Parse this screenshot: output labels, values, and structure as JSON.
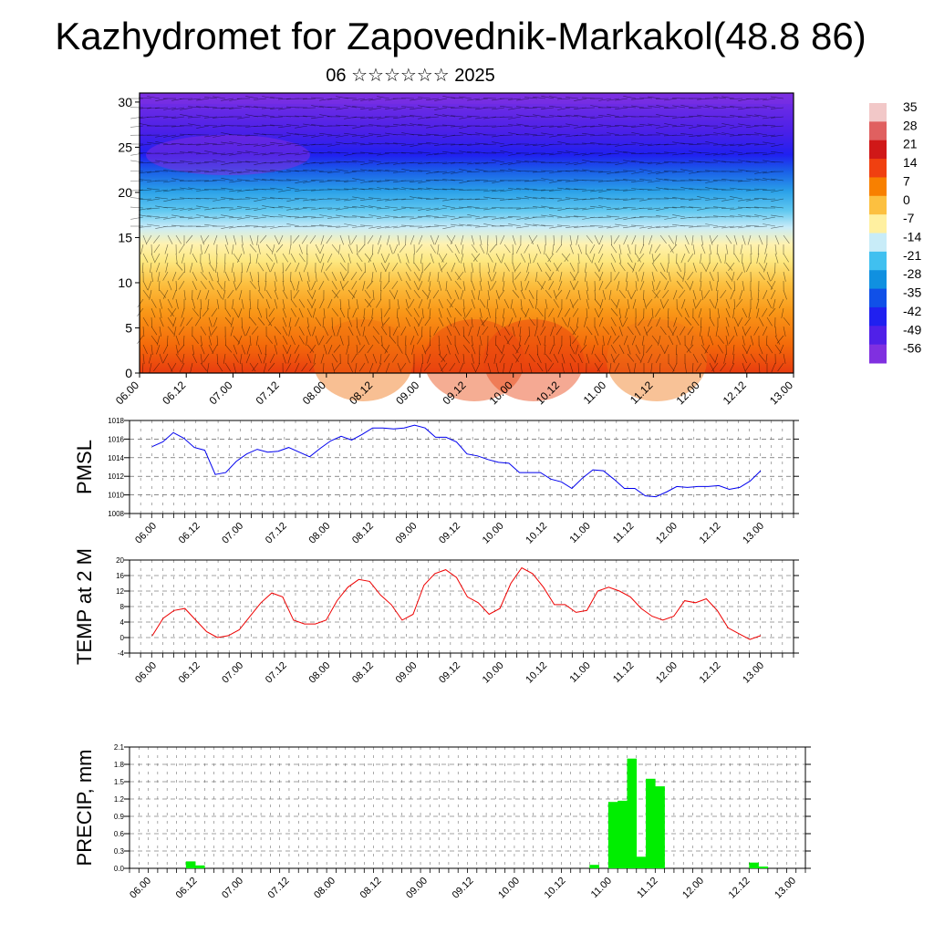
{
  "title": "Kazhydromet for Zapovednik-Markakol(48.8 86)",
  "subtitle": "06 ☆☆☆☆☆☆ 2025",
  "colorbar": {
    "labels": [
      "35",
      "28",
      "21",
      "14",
      "7",
      "0",
      "-7",
      "-14",
      "-21",
      "-28",
      "-35",
      "-42",
      "-49",
      "-56"
    ],
    "colors": [
      "#f2c8c8",
      "#e06060",
      "#d01818",
      "#f04010",
      "#f88000",
      "#fcc040",
      "#fff0a0",
      "#c8ecf8",
      "#40c0f0",
      "#1090e0",
      "#1050e8",
      "#2020f0",
      "#5020e8",
      "#8030e0"
    ]
  },
  "chart_data": [
    {
      "type": "heatmap",
      "x_tick_labels": [
        "06.00",
        "06.12",
        "07.00",
        "07.12",
        "08.00",
        "08.12",
        "09.00",
        "09.12",
        "10.00",
        "10.12",
        "11.00",
        "11.12",
        "12.00",
        "12.12",
        "13.00"
      ],
      "y_ticks": [
        0,
        5,
        10,
        15,
        20,
        25,
        30
      ],
      "ylim": [
        0,
        31
      ],
      "description_layers": "temperature (color) vs level with wind barbs",
      "zero_line_level": [
        14,
        14.5,
        15,
        15.5,
        16,
        16,
        16,
        15.5,
        15,
        14.5,
        14,
        13.5,
        13,
        12.5,
        12
      ]
    },
    {
      "type": "line",
      "ylabel": "PMSL",
      "color": "#0000ee",
      "x_tick_labels": [
        "06.00",
        "06.12",
        "07.00",
        "07.12",
        "08.00",
        "08.12",
        "09.00",
        "09.12",
        "10.00",
        "10.12",
        "11.00",
        "11.12",
        "12.00",
        "12.12",
        "13.00"
      ],
      "y_ticks": [
        1008,
        1010,
        1012,
        1014,
        1016,
        1018
      ],
      "ylim": [
        1008,
        1018
      ],
      "values": [
        1015.2,
        1015.7,
        1016.7,
        1016.1,
        1015.1,
        1014.8,
        1012.2,
        1012.4,
        1013.6,
        1014.4,
        1014.9,
        1014.6,
        1014.7,
        1015.1,
        1014.6,
        1014.1,
        1015.0,
        1015.8,
        1016.3,
        1015.9,
        1016.5,
        1017.2,
        1017.2,
        1017.1,
        1017.2,
        1017.5,
        1017.2,
        1016.2,
        1016.2,
        1015.7,
        1014.4,
        1014.2,
        1013.8,
        1013.5,
        1013.4,
        1012.4,
        1012.4,
        1012.4,
        1011.7,
        1011.4,
        1010.7,
        1011.8,
        1012.7,
        1012.6,
        1011.7,
        1010.7,
        1010.7,
        1009.9,
        1009.8,
        1010.3,
        1010.9,
        1010.8,
        1010.9,
        1010.9,
        1011.0,
        1010.6,
        1010.8,
        1011.5,
        1012.6
      ]
    },
    {
      "type": "line",
      "ylabel": "TEMP at 2 M",
      "color": "#ee0000",
      "x_tick_labels": [
        "06.00",
        "06.12",
        "07.00",
        "07.12",
        "08.00",
        "08.12",
        "09.00",
        "09.12",
        "10.00",
        "10.12",
        "11.00",
        "11.12",
        "12.00",
        "12.12",
        "13.00"
      ],
      "y_ticks": [
        -4,
        0,
        4,
        8,
        12,
        16,
        20
      ],
      "ylim": [
        -4,
        20
      ],
      "values": [
        0.5,
        5.0,
        7.0,
        7.5,
        4.5,
        1.5,
        0.0,
        0.5,
        2.0,
        5.5,
        9.0,
        11.5,
        10.5,
        4.5,
        3.5,
        3.5,
        4.5,
        9.5,
        13.0,
        15.0,
        14.5,
        11.0,
        8.5,
        4.5,
        6.0,
        13.5,
        16.5,
        17.5,
        15.5,
        10.5,
        9.0,
        6.0,
        7.5,
        14.0,
        18.0,
        16.5,
        13.0,
        8.5,
        8.5,
        6.5,
        7.0,
        12.0,
        13.0,
        12.0,
        10.5,
        7.5,
        5.5,
        4.5,
        5.5,
        9.5,
        9.0,
        10.0,
        7.0,
        2.5,
        1.0,
        -0.5,
        0.5
      ]
    },
    {
      "type": "bar",
      "ylabel": "PRECIP, mm",
      "color": "#00ee00",
      "x_tick_labels": [
        "06.00",
        "06.12",
        "07.00",
        "07.12",
        "08.00",
        "08.12",
        "09.00",
        "09.12",
        "10.00",
        "10.12",
        "11.00",
        "11.12",
        "12.00",
        "12.12",
        "13.00"
      ],
      "y_ticks": [
        0.0,
        0.3,
        0.6,
        0.9,
        1.2,
        1.5,
        1.8,
        2.1
      ],
      "ylim": [
        0,
        2.1
      ],
      "values": [
        0,
        0,
        0,
        0,
        0,
        0,
        0.12,
        0.05,
        0,
        0,
        0,
        0,
        0,
        0,
        0,
        0,
        0,
        0,
        0,
        0,
        0,
        0,
        0,
        0,
        0,
        0,
        0,
        0,
        0,
        0,
        0,
        0,
        0,
        0,
        0,
        0,
        0,
        0,
        0,
        0,
        0,
        0,
        0,
        0,
        0,
        0,
        0,
        0,
        0,
        0.06,
        0,
        1.15,
        1.17,
        1.9,
        0.2,
        1.55,
        1.42,
        0,
        0,
        0,
        0,
        0,
        0,
        0,
        0,
        0,
        0.1,
        0.03,
        0,
        0,
        0,
        0
      ]
    }
  ]
}
